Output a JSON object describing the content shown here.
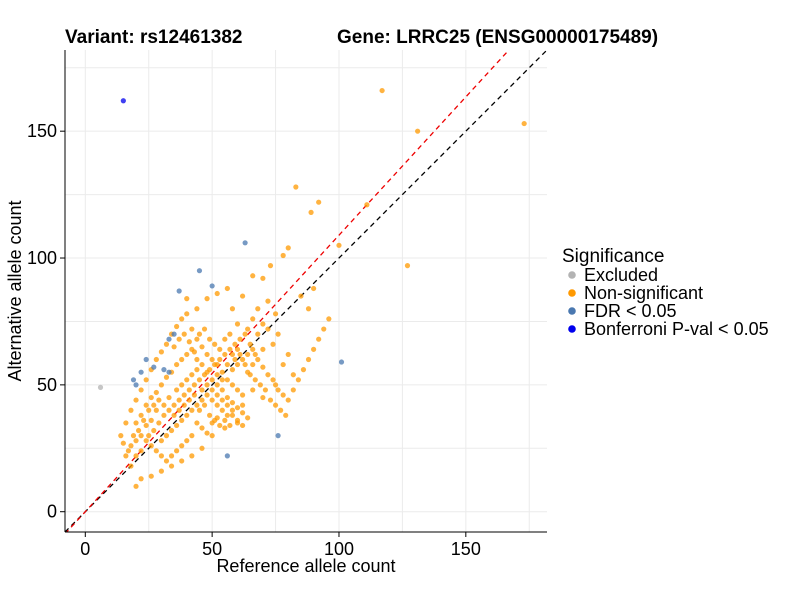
{
  "chart_data": {
    "type": "scatter",
    "title_left": "Variant: rs12461382",
    "title_right": "Gene: LRRC25 (ENSG00000175489)",
    "xlabel": "Reference allele count",
    "ylabel": "Alternative allele count",
    "xlim": [
      -8,
      182
    ],
    "ylim": [
      -8,
      182
    ],
    "xticks": [
      0,
      50,
      100,
      150
    ],
    "yticks": [
      0,
      50,
      100,
      150
    ],
    "grid": true,
    "legend": {
      "title": "Significance",
      "position": "right",
      "entries": [
        {
          "label": "Excluded",
          "color": "#b3b3b3"
        },
        {
          "label": "Non-significant",
          "color": "#ff9900"
        },
        {
          "label": "FDR < 0.05",
          "color": "#4a78b0"
        },
        {
          "label": "Bonferroni P-val < 0.05",
          "color": "#0000ee"
        }
      ]
    },
    "reference_lines": [
      {
        "type": "identity",
        "slope": 1,
        "intercept": 0,
        "color": "#000000",
        "dash": true
      },
      {
        "type": "fit",
        "slope": 1.09,
        "intercept": 0,
        "color": "#ee0000",
        "dash": true
      }
    ],
    "series": [
      {
        "name": "Excluded",
        "color": "#b3b3b3",
        "points": [
          [
            6,
            49
          ]
        ]
      },
      {
        "name": "Non-significant",
        "color": "#ff9900",
        "points": [
          [
            117,
            166
          ],
          [
            131,
            150
          ],
          [
            173,
            153
          ],
          [
            83,
            128
          ],
          [
            111,
            121
          ],
          [
            127,
            97
          ],
          [
            92,
            122
          ],
          [
            89,
            118
          ],
          [
            100,
            105
          ],
          [
            80,
            104
          ],
          [
            78,
            101
          ],
          [
            73,
            97
          ],
          [
            70,
            92
          ],
          [
            66,
            93
          ],
          [
            85,
            85
          ],
          [
            90,
            88
          ],
          [
            88,
            80
          ],
          [
            75,
            78
          ],
          [
            72,
            83
          ],
          [
            62,
            85
          ],
          [
            58,
            80
          ],
          [
            56,
            88
          ],
          [
            52,
            86
          ],
          [
            48,
            84
          ],
          [
            44,
            80
          ],
          [
            40,
            84
          ],
          [
            60,
            74
          ],
          [
            64,
            72
          ],
          [
            68,
            70
          ],
          [
            70,
            64
          ],
          [
            74,
            66
          ],
          [
            78,
            58
          ],
          [
            80,
            62
          ],
          [
            82,
            54
          ],
          [
            75,
            50
          ],
          [
            70,
            45
          ],
          [
            66,
            48
          ],
          [
            62,
            42
          ],
          [
            58,
            40
          ],
          [
            60,
            35
          ],
          [
            55,
            33
          ],
          [
            50,
            30
          ],
          [
            46,
            25
          ],
          [
            42,
            22
          ],
          [
            38,
            20
          ],
          [
            34,
            18
          ],
          [
            30,
            16
          ],
          [
            26,
            14
          ],
          [
            22,
            13
          ],
          [
            20,
            10
          ],
          [
            18,
            18
          ],
          [
            16,
            22
          ],
          [
            15,
            27
          ],
          [
            14,
            30
          ],
          [
            16,
            35
          ],
          [
            18,
            40
          ],
          [
            20,
            44
          ],
          [
            22,
            48
          ],
          [
            24,
            52
          ],
          [
            26,
            56
          ],
          [
            28,
            60
          ],
          [
            30,
            63
          ],
          [
            32,
            66
          ],
          [
            34,
            70
          ],
          [
            36,
            73
          ],
          [
            38,
            76
          ],
          [
            40,
            78
          ],
          [
            42,
            72
          ],
          [
            44,
            68
          ],
          [
            46,
            65
          ],
          [
            48,
            62
          ],
          [
            50,
            60
          ],
          [
            52,
            58
          ],
          [
            54,
            55
          ],
          [
            56,
            52
          ],
          [
            58,
            50
          ],
          [
            60,
            48
          ],
          [
            62,
            46
          ],
          [
            64,
            55
          ],
          [
            66,
            58
          ],
          [
            68,
            60
          ],
          [
            70,
            57
          ],
          [
            72,
            54
          ],
          [
            74,
            52
          ],
          [
            76,
            48
          ],
          [
            78,
            46
          ],
          [
            80,
            44
          ],
          [
            82,
            48
          ],
          [
            84,
            52
          ],
          [
            86,
            56
          ],
          [
            88,
            60
          ],
          [
            90,
            64
          ],
          [
            92,
            68
          ],
          [
            94,
            72
          ],
          [
            96,
            76
          ],
          [
            20,
            35
          ],
          [
            22,
            38
          ],
          [
            24,
            42
          ],
          [
            26,
            45
          ],
          [
            28,
            47
          ],
          [
            30,
            50
          ],
          [
            32,
            53
          ],
          [
            34,
            55
          ],
          [
            36,
            58
          ],
          [
            38,
            60
          ],
          [
            40,
            62
          ],
          [
            42,
            64
          ],
          [
            44,
            60
          ],
          [
            46,
            58
          ],
          [
            48,
            55
          ],
          [
            50,
            52
          ],
          [
            52,
            50
          ],
          [
            54,
            48
          ],
          [
            56,
            45
          ],
          [
            58,
            43
          ],
          [
            60,
            41
          ],
          [
            62,
            39
          ],
          [
            64,
            37
          ],
          [
            25,
            30
          ],
          [
            27,
            32
          ],
          [
            29,
            35
          ],
          [
            31,
            38
          ],
          [
            33,
            40
          ],
          [
            35,
            42
          ],
          [
            37,
            44
          ],
          [
            39,
            46
          ],
          [
            41,
            48
          ],
          [
            43,
            50
          ],
          [
            45,
            52
          ],
          [
            47,
            54
          ],
          [
            49,
            56
          ],
          [
            51,
            58
          ],
          [
            53,
            60
          ],
          [
            55,
            62
          ],
          [
            57,
            64
          ],
          [
            59,
            66
          ],
          [
            61,
            68
          ],
          [
            63,
            70
          ],
          [
            65,
            66
          ],
          [
            67,
            62
          ],
          [
            30,
            28
          ],
          [
            32,
            30
          ],
          [
            34,
            32
          ],
          [
            36,
            34
          ],
          [
            38,
            36
          ],
          [
            40,
            38
          ],
          [
            42,
            40
          ],
          [
            44,
            42
          ],
          [
            46,
            44
          ],
          [
            48,
            46
          ],
          [
            50,
            48
          ],
          [
            52,
            46
          ],
          [
            54,
            44
          ],
          [
            56,
            42
          ],
          [
            58,
            38
          ],
          [
            60,
            36
          ],
          [
            62,
            34
          ],
          [
            28,
            40
          ],
          [
            26,
            36
          ],
          [
            24,
            34
          ],
          [
            22,
            30
          ],
          [
            20,
            28
          ],
          [
            18,
            26
          ],
          [
            36,
            48
          ],
          [
            38,
            50
          ],
          [
            40,
            52
          ],
          [
            42,
            54
          ],
          [
            44,
            56
          ],
          [
            46,
            48
          ],
          [
            48,
            50
          ],
          [
            50,
            44
          ],
          [
            52,
            42
          ],
          [
            54,
            40
          ],
          [
            56,
            38
          ],
          [
            35,
            38
          ],
          [
            37,
            40
          ],
          [
            39,
            42
          ],
          [
            41,
            44
          ],
          [
            43,
            46
          ],
          [
            45,
            40
          ],
          [
            47,
            42
          ],
          [
            49,
            38
          ],
          [
            51,
            36
          ],
          [
            53,
            34
          ],
          [
            55,
            36
          ],
          [
            57,
            34
          ],
          [
            33,
            45
          ],
          [
            31,
            42
          ],
          [
            29,
            44
          ],
          [
            27,
            42
          ],
          [
            25,
            40
          ],
          [
            23,
            36
          ],
          [
            21,
            32
          ],
          [
            19,
            30
          ],
          [
            17,
            24
          ],
          [
            35,
            65
          ],
          [
            37,
            68
          ],
          [
            39,
            70
          ],
          [
            41,
            67
          ],
          [
            43,
            63
          ],
          [
            45,
            70
          ],
          [
            47,
            72
          ],
          [
            49,
            68
          ],
          [
            51,
            66
          ],
          [
            53,
            64
          ],
          [
            55,
            68
          ],
          [
            57,
            70
          ],
          [
            59,
            60
          ],
          [
            61,
            62
          ],
          [
            63,
            58
          ],
          [
            65,
            54
          ],
          [
            67,
            52
          ],
          [
            69,
            50
          ],
          [
            71,
            48
          ],
          [
            73,
            44
          ],
          [
            75,
            42
          ],
          [
            77,
            40
          ],
          [
            79,
            38
          ],
          [
            44,
            35
          ],
          [
            46,
            33
          ],
          [
            48,
            31
          ],
          [
            50,
            35
          ],
          [
            52,
            37
          ],
          [
            40,
            28
          ],
          [
            42,
            30
          ],
          [
            38,
            26
          ],
          [
            36,
            24
          ],
          [
            34,
            22
          ],
          [
            32,
            20
          ],
          [
            30,
            22
          ],
          [
            28,
            24
          ],
          [
            26,
            26
          ],
          [
            24,
            28
          ],
          [
            22,
            24
          ],
          [
            20,
            22
          ],
          [
            66,
            76
          ],
          [
            68,
            80
          ],
          [
            70,
            74
          ],
          [
            72,
            72
          ],
          [
            76,
            70
          ],
          [
            58,
            56
          ],
          [
            60,
            58
          ],
          [
            62,
            60
          ],
          [
            64,
            62
          ],
          [
            66,
            64
          ],
          [
            54,
            52
          ],
          [
            52,
            54
          ],
          [
            56,
            58
          ],
          [
            58,
            62
          ],
          [
            60,
            64
          ]
        ]
      },
      {
        "name": "FDR < 0.05",
        "color": "#4a78b0",
        "points": [
          [
            63,
            106
          ],
          [
            45,
            95
          ],
          [
            50,
            89
          ],
          [
            37,
            87
          ],
          [
            35,
            70
          ],
          [
            24,
            60
          ],
          [
            22,
            55
          ],
          [
            27,
            57
          ],
          [
            31,
            56
          ],
          [
            33,
            55
          ],
          [
            19,
            52
          ],
          [
            20,
            50
          ],
          [
            33,
            68
          ],
          [
            101,
            59
          ],
          [
            76,
            30
          ],
          [
            56,
            22
          ]
        ]
      },
      {
        "name": "Bonferroni P-val < 0.05",
        "color": "#0000ee",
        "points": [
          [
            15,
            162
          ]
        ]
      }
    ]
  }
}
